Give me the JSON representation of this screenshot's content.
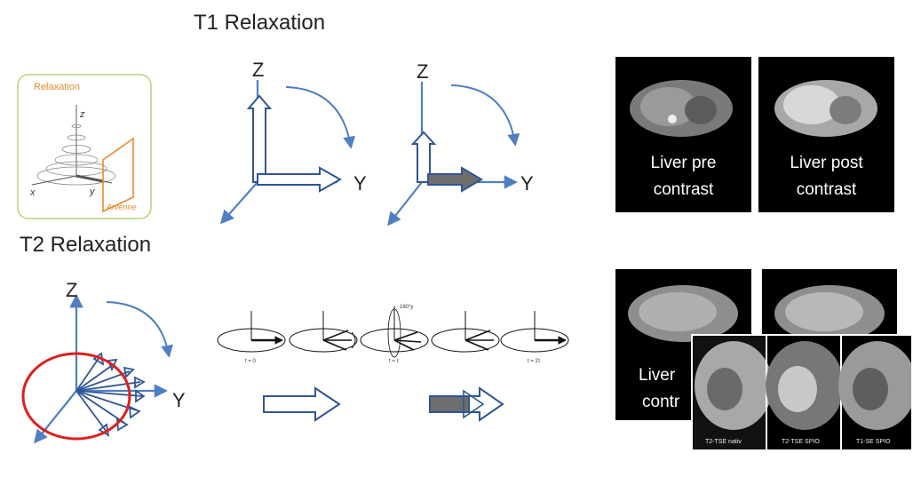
{
  "t1": {
    "title": "T1 Relaxation"
  },
  "t2": {
    "title": "T2 Relaxation"
  },
  "axes": {
    "z": "Z",
    "y": "Y"
  },
  "inset": {
    "relaxation": "Relaxation",
    "antenne": "Antenne",
    "z": "z",
    "x": "x",
    "y": "y"
  },
  "strip": {
    "t0": "t = 0",
    "ttau": "t = τ",
    "t2tau": "t = 2τ",
    "deg": "180°y"
  },
  "mri_top": {
    "pre_line1": "Liver pre",
    "pre_line2": "contrast",
    "post_line1": "Liver post",
    "post_line2": "contrast"
  },
  "mri_bottom": {
    "line1": "Liver",
    "line2": "contr",
    "l1": "T2-TSE nativ",
    "l2": "T2-TSE SPIO",
    "l3": "T1-SE SPIO"
  },
  "colors": {
    "axis": "#4f7fc2",
    "filled": "#6e6e6e",
    "ellipse": "#e01e1e",
    "inset_border": "#b6d47a",
    "antenna": "#e88a2a"
  }
}
